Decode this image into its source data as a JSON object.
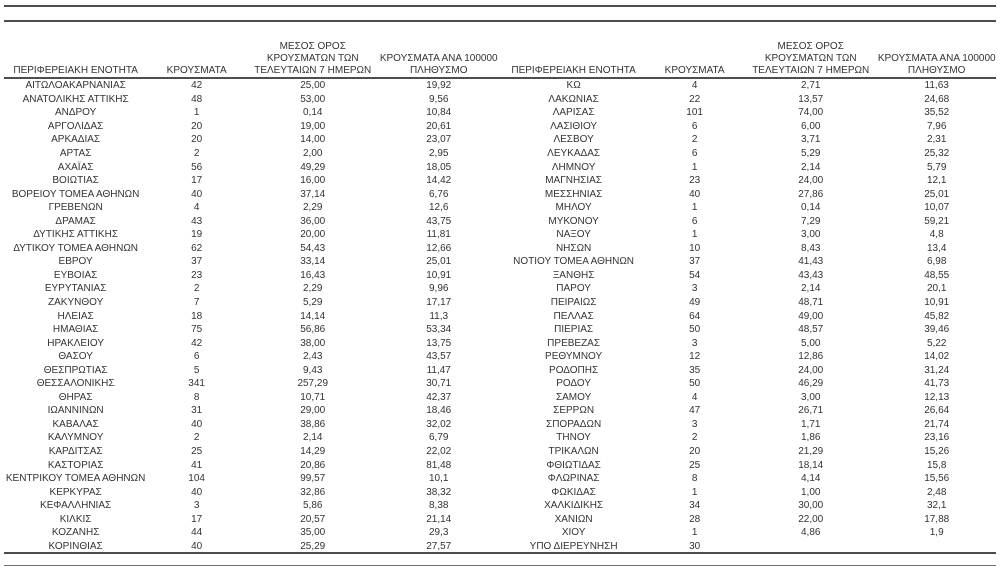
{
  "page": {
    "background": "#ffffff",
    "text_color": "#333333",
    "rule_color": "#4d4d4d"
  },
  "headers": {
    "region": "ΠΕΡΙΦΕΡΕΙΑΚΗ ΕΝΟΤΗΤΑ",
    "cases": "ΚΡΟΥΣΜΑΤΑ",
    "avg7_lines": [
      "ΜΕΣΟΣ ΟΡΟΣ",
      "ΚΡΟΥΣΜΑΤΩΝ ΤΩΝ",
      "ΤΕΛΕΥΤΑΙΩΝ 7 ΗΜΕΡΩΝ"
    ],
    "per100k_lines": [
      "ΚΡΟΥΣΜΑΤΑ ΑΝΑ 100000",
      "ΠΛΗΘΥΣΜΟ"
    ]
  },
  "panels": [
    {
      "rows": [
        [
          "ΑΙΤΩΛΟΑΚΑΡΝΑΝΙΑΣ",
          "42",
          "25,00",
          "19,92"
        ],
        [
          "ΑΝΑΤΟΛΙΚΗΣ ΑΤΤΙΚΗΣ",
          "48",
          "53,00",
          "9,56"
        ],
        [
          "ΑΝΔΡΟΥ",
          "1",
          "0,14",
          "10,84"
        ],
        [
          "ΑΡΓΟΛΙΔΑΣ",
          "20",
          "19,00",
          "20,61"
        ],
        [
          "ΑΡΚΑΔΙΑΣ",
          "20",
          "14,00",
          "23,07"
        ],
        [
          "ΑΡΤΑΣ",
          "2",
          "2,00",
          "2,95"
        ],
        [
          "ΑΧΑΪΑΣ",
          "56",
          "49,29",
          "18,05"
        ],
        [
          "ΒΟΙΩΤΙΑΣ",
          "17",
          "16,00",
          "14,42"
        ],
        [
          "ΒΟΡΕΙΟΥ ΤΟΜΕΑ ΑΘΗΝΩΝ",
          "40",
          "37,14",
          "6,76"
        ],
        [
          "ΓΡΕΒΕΝΩΝ",
          "4",
          "2,29",
          "12,6"
        ],
        [
          "ΔΡΑΜΑΣ",
          "43",
          "36,00",
          "43,75"
        ],
        [
          "ΔΥΤΙΚΗΣ ΑΤΤΙΚΗΣ",
          "19",
          "20,00",
          "11,81"
        ],
        [
          "ΔΥΤΙΚΟΥ ΤΟΜΕΑ ΑΘΗΝΩΝ",
          "62",
          "54,43",
          "12,66"
        ],
        [
          "ΕΒΡΟΥ",
          "37",
          "33,14",
          "25,01"
        ],
        [
          "ΕΥΒΟΙΑΣ",
          "23",
          "16,43",
          "10,91"
        ],
        [
          "ΕΥΡΥΤΑΝΙΑΣ",
          "2",
          "2,29",
          "9,96"
        ],
        [
          "ΖΑΚΥΝΘΟΥ",
          "7",
          "5,29",
          "17,17"
        ],
        [
          "ΗΛΕΙΑΣ",
          "18",
          "14,14",
          "11,3"
        ],
        [
          "ΗΜΑΘΙΑΣ",
          "75",
          "56,86",
          "53,34"
        ],
        [
          "ΗΡΑΚΛΕΙΟΥ",
          "42",
          "38,00",
          "13,75"
        ],
        [
          "ΘΑΣΟΥ",
          "6",
          "2,43",
          "43,57"
        ],
        [
          "ΘΕΣΠΡΩΤΙΑΣ",
          "5",
          "9,43",
          "11,47"
        ],
        [
          "ΘΕΣΣΑΛΟΝΙΚΗΣ",
          "341",
          "257,29",
          "30,71"
        ],
        [
          "ΘΗΡΑΣ",
          "8",
          "10,71",
          "42,37"
        ],
        [
          "ΙΩΑΝΝΙΝΩΝ",
          "31",
          "29,00",
          "18,46"
        ],
        [
          "ΚΑΒΑΛΑΣ",
          "40",
          "38,86",
          "32,02"
        ],
        [
          "ΚΑΛΥΜΝΟΥ",
          "2",
          "2,14",
          "6,79"
        ],
        [
          "ΚΑΡΔΙΤΣΑΣ",
          "25",
          "14,29",
          "22,02"
        ],
        [
          "ΚΑΣΤΟΡΙΑΣ",
          "41",
          "20,86",
          "81,48"
        ],
        [
          "ΚΕΝΤΡΙΚΟΥ ΤΟΜΕΑ ΑΘΗΝΩΝ",
          "104",
          "99,57",
          "10,1"
        ],
        [
          "ΚΕΡΚΥΡΑΣ",
          "40",
          "32,86",
          "38,32"
        ],
        [
          "ΚΕΦΑΛΛΗΝΙΑΣ",
          "3",
          "5,86",
          "8,38"
        ],
        [
          "ΚΙΛΚΙΣ",
          "17",
          "20,57",
          "21,14"
        ],
        [
          "ΚΟΖΑΝΗΣ",
          "44",
          "35,00",
          "29,3"
        ],
        [
          "ΚΟΡΙΝΘΙΑΣ",
          "40",
          "25,29",
          "27,57"
        ]
      ]
    },
    {
      "rows": [
        [
          "ΚΩ",
          "4",
          "2,71",
          "11,63"
        ],
        [
          "ΛΑΚΩΝΙΑΣ",
          "22",
          "13,57",
          "24,68"
        ],
        [
          "ΛΑΡΙΣΑΣ",
          "101",
          "74,00",
          "35,52"
        ],
        [
          "ΛΑΣΙΘΙΟΥ",
          "6",
          "6,00",
          "7,96"
        ],
        [
          "ΛΕΣΒΟΥ",
          "2",
          "3,71",
          "2,31"
        ],
        [
          "ΛΕΥΚΑΔΑΣ",
          "6",
          "5,29",
          "25,32"
        ],
        [
          "ΛΗΜΝΟΥ",
          "1",
          "2,14",
          "5,79"
        ],
        [
          "ΜΑΓΝΗΣΙΑΣ",
          "23",
          "24,00",
          "12,1"
        ],
        [
          "ΜΕΣΣΗΝΙΑΣ",
          "40",
          "27,86",
          "25,01"
        ],
        [
          "ΜΗΛΟΥ",
          "1",
          "0,14",
          "10,07"
        ],
        [
          "ΜΥΚΟΝΟΥ",
          "6",
          "7,29",
          "59,21"
        ],
        [
          "ΝΑΞΟΥ",
          "1",
          "3,00",
          "4,8"
        ],
        [
          "ΝΗΣΩΝ",
          "10",
          "8,43",
          "13,4"
        ],
        [
          "ΝΟΤΙΟΥ ΤΟΜΕΑ ΑΘΗΝΩΝ",
          "37",
          "41,43",
          "6,98"
        ],
        [
          "ΞΑΝΘΗΣ",
          "54",
          "43,43",
          "48,55"
        ],
        [
          "ΠΑΡΟΥ",
          "3",
          "2,14",
          "20,1"
        ],
        [
          "ΠΕΙΡΑΙΩΣ",
          "49",
          "48,71",
          "10,91"
        ],
        [
          "ΠΕΛΛΑΣ",
          "64",
          "49,00",
          "45,82"
        ],
        [
          "ΠΙΕΡΙΑΣ",
          "50",
          "48,57",
          "39,46"
        ],
        [
          "ΠΡΕΒΕΖΑΣ",
          "3",
          "5,00",
          "5,22"
        ],
        [
          "ΡΕΘΥΜΝΟΥ",
          "12",
          "12,86",
          "14,02"
        ],
        [
          "ΡΟΔΟΠΗΣ",
          "35",
          "24,00",
          "31,24"
        ],
        [
          "ΡΟΔΟΥ",
          "50",
          "46,29",
          "41,73"
        ],
        [
          "ΣΑΜΟΥ",
          "4",
          "3,00",
          "12,13"
        ],
        [
          "ΣΕΡΡΩΝ",
          "47",
          "26,71",
          "26,64"
        ],
        [
          "ΣΠΟΡΑΔΩΝ",
          "3",
          "1,71",
          "21,74"
        ],
        [
          "ΤΗΝΟΥ",
          "2",
          "1,86",
          "23,16"
        ],
        [
          "ΤΡΙΚΑΛΩΝ",
          "20",
          "21,29",
          "15,26"
        ],
        [
          "ΦΘΙΩΤΙΔΑΣ",
          "25",
          "18,14",
          "15,8"
        ],
        [
          "ΦΛΩΡΙΝΑΣ",
          "8",
          "4,14",
          "15,56"
        ],
        [
          "ΦΩΚΙΔΑΣ",
          "1",
          "1,00",
          "2,48"
        ],
        [
          "ΧΑΛΚΙΔΙΚΗΣ",
          "34",
          "30,00",
          "32,1"
        ],
        [
          "ΧΑΝΙΩΝ",
          "28",
          "22,00",
          "17,88"
        ],
        [
          "ΧΙΟΥ",
          "1",
          "4,86",
          "1,9"
        ],
        [
          "ΥΠΟ ΔΙΕΡΕΥΝΗΣΗ",
          "30",
          "",
          ""
        ]
      ]
    }
  ]
}
